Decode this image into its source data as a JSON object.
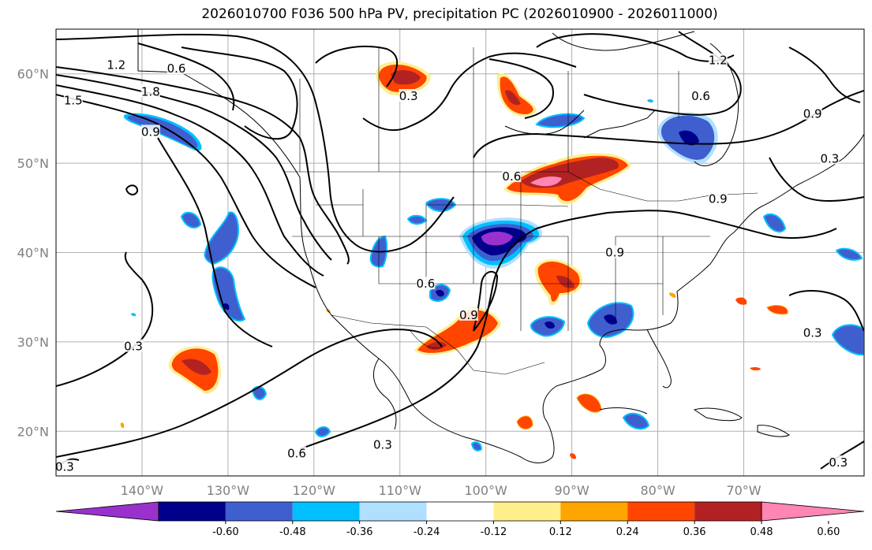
{
  "title": "2026010700 F036 500 hPa PV, precipitation PC (2026010900 - 2026011000)",
  "map": {
    "lon_range": [
      -150,
      -56
    ],
    "lat_range": [
      15,
      65
    ],
    "lon_ticks": [
      "140°W",
      "130°W",
      "120°W",
      "110°W",
      "100°W",
      "90°W",
      "80°W",
      "70°W"
    ],
    "lat_ticks": [
      "60°N",
      "50°N",
      "40°N",
      "30°N",
      "20°N"
    ],
    "grid": true
  },
  "contour_labels": [
    {
      "text": "1.2",
      "lon": -143,
      "lat": 61
    },
    {
      "text": "0.6",
      "lon": -136,
      "lat": 60.6
    },
    {
      "text": "1.8",
      "lon": -139,
      "lat": 58
    },
    {
      "text": "1.5",
      "lon": -148,
      "lat": 57
    },
    {
      "text": "0.9",
      "lon": -139,
      "lat": 53.5
    },
    {
      "text": "0.3",
      "lon": -109,
      "lat": 57.5
    },
    {
      "text": "0.6",
      "lon": -97,
      "lat": 48.5
    },
    {
      "text": "0.6",
      "lon": -75,
      "lat": 57.5
    },
    {
      "text": "1.2",
      "lon": -73,
      "lat": 61.5
    },
    {
      "text": "0.9",
      "lon": -62,
      "lat": 55.5
    },
    {
      "text": "0.3",
      "lon": -60,
      "lat": 50.5
    },
    {
      "text": "0.9",
      "lon": -73,
      "lat": 46
    },
    {
      "text": "0.9",
      "lon": -85,
      "lat": 40
    },
    {
      "text": "0.6",
      "lon": -107,
      "lat": 36.5
    },
    {
      "text": "0.9",
      "lon": -102,
      "lat": 33
    },
    {
      "text": "0.3",
      "lon": -141,
      "lat": 29.5
    },
    {
      "text": "0.3",
      "lon": -62,
      "lat": 31
    },
    {
      "text": "0.6",
      "lon": -122,
      "lat": 17.5
    },
    {
      "text": "0.3",
      "lon": -112,
      "lat": 18.5
    },
    {
      "text": "0.3",
      "lon": -149,
      "lat": 16
    },
    {
      "text": "0.3",
      "lon": -59,
      "lat": 16.5
    }
  ],
  "colorbar": {
    "colors": [
      "#9932CC",
      "#00008B",
      "#3F5FCF",
      "#00BFFF",
      "#B0E0FF",
      "#FFFFFF",
      "#FFEE8C",
      "#FFA500",
      "#FF4500",
      "#B22222",
      "#FF85B5"
    ],
    "labels": [
      "-0.60",
      "-0.48",
      "-0.36",
      "-0.24",
      "-0.12",
      "0.12",
      "0.24",
      "0.36",
      "0.48",
      "0.60"
    ]
  },
  "colors": {
    "contour": "#000000",
    "grid": "#b0b0b0"
  }
}
